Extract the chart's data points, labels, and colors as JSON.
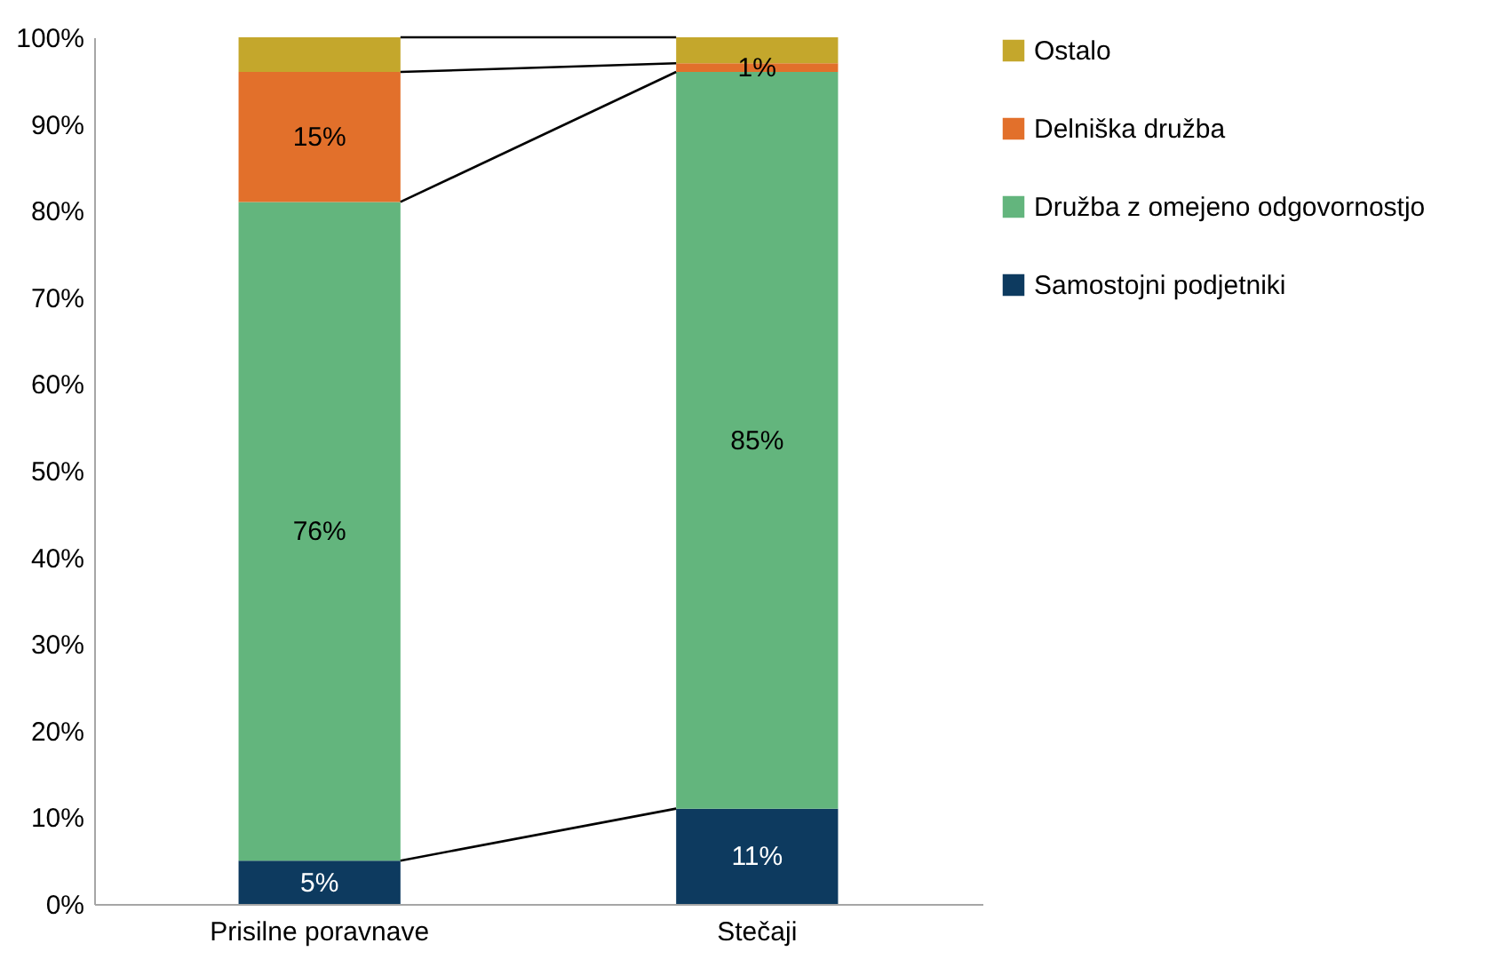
{
  "chart_data": {
    "type": "bar",
    "stacked": true,
    "categories": [
      "Prisilne poravnave",
      "Stečaji"
    ],
    "series": [
      {
        "name": "Samostojni podjetniki",
        "color": "#0d3a5f",
        "values": [
          5,
          11
        ],
        "value_labels": [
          "5%",
          "11%"
        ]
      },
      {
        "name": "Družba z omejeno odgovornostjo",
        "color": "#63b57d",
        "values": [
          76,
          85
        ],
        "value_labels": [
          "76%",
          "85%"
        ]
      },
      {
        "name": "Delniška družba",
        "color": "#e2702b",
        "values": [
          15,
          1
        ],
        "value_labels": [
          "15%",
          "1%"
        ]
      },
      {
        "name": "Ostalo",
        "color": "#c4a72c",
        "values": [
          4,
          3
        ],
        "value_labels": [
          null,
          null
        ]
      }
    ],
    "ylim": [
      0,
      100
    ],
    "yticks": [
      {
        "value": 0,
        "label": "0%"
      },
      {
        "value": 10,
        "label": "10%"
      },
      {
        "value": 20,
        "label": "20%"
      },
      {
        "value": 30,
        "label": "30%"
      },
      {
        "value": 40,
        "label": "40%"
      },
      {
        "value": 50,
        "label": "50%"
      },
      {
        "value": 60,
        "label": "60%"
      },
      {
        "value": 70,
        "label": "70%"
      },
      {
        "value": 80,
        "label": "80%"
      },
      {
        "value": 90,
        "label": "90%"
      },
      {
        "value": 100,
        "label": "100%"
      }
    ],
    "legend": "right",
    "grid": false
  }
}
